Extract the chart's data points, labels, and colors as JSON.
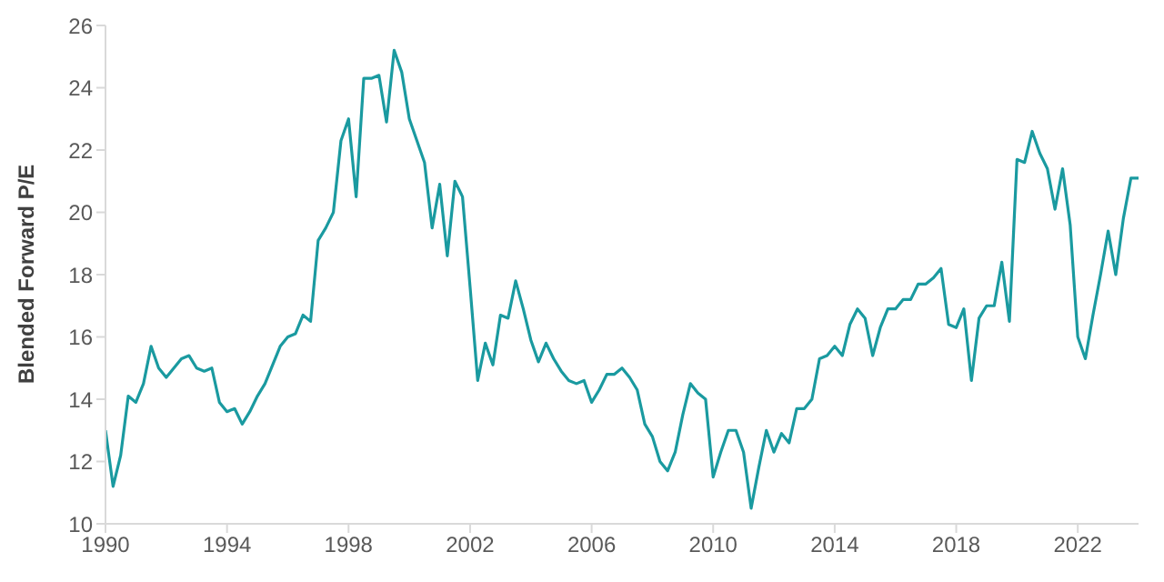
{
  "chart_data": {
    "type": "line",
    "ylabel": "Blended Forward P/E",
    "xlim": [
      1990,
      2024
    ],
    "xticks": [
      1990,
      1994,
      1998,
      2002,
      2006,
      2010,
      2014,
      2018,
      2022
    ],
    "ylim": [
      10,
      26
    ],
    "yticks": [
      10,
      12,
      14,
      16,
      18,
      20,
      22,
      24,
      26
    ],
    "grid": false,
    "legend": false,
    "marker": "none",
    "line_style": "solid",
    "x": [
      1990,
      1990.25,
      1990.5,
      1990.75,
      1991,
      1991.25,
      1991.5,
      1991.75,
      1992,
      1992.25,
      1992.5,
      1992.75,
      1993,
      1993.25,
      1993.5,
      1993.75,
      1994,
      1994.25,
      1994.5,
      1994.75,
      1995,
      1995.25,
      1995.5,
      1995.75,
      1996,
      1996.25,
      1996.5,
      1996.75,
      1997,
      1997.25,
      1997.5,
      1997.75,
      1998,
      1998.25,
      1998.5,
      1998.75,
      1999,
      1999.25,
      1999.5,
      1999.75,
      2000,
      2000.25,
      2000.5,
      2000.75,
      2001,
      2001.25,
      2001.5,
      2001.75,
      2002,
      2002.25,
      2002.5,
      2002.75,
      2003,
      2003.25,
      2003.5,
      2003.75,
      2004,
      2004.25,
      2004.5,
      2004.75,
      2005,
      2005.25,
      2005.5,
      2005.75,
      2006,
      2006.25,
      2006.5,
      2006.75,
      2007,
      2007.25,
      2007.5,
      2007.75,
      2008,
      2008.25,
      2008.5,
      2008.75,
      2009,
      2009.25,
      2009.5,
      2009.75,
      2010,
      2010.25,
      2010.5,
      2010.75,
      2011,
      2011.25,
      2011.5,
      2011.75,
      2012,
      2012.25,
      2012.5,
      2012.75,
      2013,
      2013.25,
      2013.5,
      2013.75,
      2014,
      2014.25,
      2014.5,
      2014.75,
      2015,
      2015.25,
      2015.5,
      2015.75,
      2016,
      2016.25,
      2016.5,
      2016.75,
      2017,
      2017.25,
      2017.5,
      2017.75,
      2018,
      2018.25,
      2018.5,
      2018.75,
      2019,
      2019.25,
      2019.5,
      2019.75,
      2020,
      2020.25,
      2020.5,
      2020.75,
      2021,
      2021.25,
      2021.5,
      2021.75,
      2022,
      2022.25,
      2022.5,
      2022.75,
      2023,
      2023.25,
      2023.5,
      2023.75,
      2024
    ],
    "series": [
      {
        "color": "#1a9aa0",
        "values": [
          13.0,
          11.2,
          12.2,
          14.1,
          13.9,
          14.5,
          15.7,
          15.0,
          14.7,
          15.0,
          15.3,
          15.4,
          15.0,
          14.9,
          15.0,
          13.9,
          13.6,
          13.7,
          13.2,
          13.6,
          14.1,
          14.5,
          15.1,
          15.7,
          16.0,
          16.1,
          16.7,
          16.5,
          19.1,
          19.5,
          20.0,
          22.3,
          23.0,
          20.5,
          24.3,
          24.3,
          24.4,
          22.9,
          25.2,
          24.5,
          23.0,
          22.3,
          21.6,
          19.5,
          20.9,
          18.6,
          21.0,
          20.5,
          17.6,
          14.6,
          15.8,
          15.1,
          16.7,
          16.6,
          17.8,
          16.9,
          15.9,
          15.2,
          15.8,
          15.3,
          14.9,
          14.6,
          14.5,
          14.6,
          13.9,
          14.3,
          14.8,
          14.8,
          15.0,
          14.7,
          14.3,
          13.2,
          12.8,
          12.0,
          11.7,
          12.3,
          13.5,
          14.5,
          14.2,
          14.0,
          11.5,
          12.3,
          13.0,
          13.0,
          12.3,
          10.5,
          11.8,
          13.0,
          12.3,
          12.9,
          12.6,
          13.7,
          13.7,
          14.0,
          15.3,
          15.4,
          15.7,
          15.4,
          16.4,
          16.9,
          16.6,
          15.4,
          16.3,
          16.9,
          16.9,
          17.2,
          17.2,
          17.7,
          17.7,
          17.9,
          18.2,
          16.4,
          16.3,
          16.9,
          14.6,
          16.6,
          17.0,
          17.0,
          18.4,
          16.5,
          21.7,
          21.6,
          22.6,
          21.9,
          21.4,
          20.1,
          21.4,
          19.6,
          16.0,
          15.3,
          16.7,
          18.0,
          19.4,
          18.0,
          19.8,
          21.1,
          21.1
        ]
      }
    ]
  }
}
